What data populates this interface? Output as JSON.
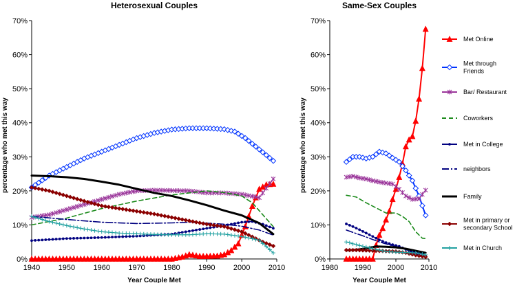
{
  "chart_data": [
    {
      "type": "line",
      "title": "Heterosexual Couples",
      "xlabel": "Year Couple Met",
      "ylabel": "percentage who met this way",
      "xlim": [
        1940,
        2010
      ],
      "ylim": [
        0,
        70
      ],
      "xticks": [
        1940,
        1950,
        1960,
        1970,
        1980,
        1990,
        2000,
        2010
      ],
      "yticks": [
        "0%",
        "10%",
        "20%",
        "30%",
        "40%",
        "50%",
        "60%",
        "70%"
      ],
      "series": [
        {
          "name": "Met Online",
          "color": "#ff0000",
          "marker": "triangle",
          "width": 2,
          "x": [
            1940,
            1950,
            1960,
            1970,
            1980,
            1983,
            1985,
            1988,
            1990,
            1993,
            1995,
            1997,
            1999,
            2001,
            2003,
            2005,
            2007,
            2009
          ],
          "y": [
            0,
            0,
            0,
            0,
            0,
            0.6,
            1.3,
            0.8,
            0.8,
            0.9,
            1.3,
            2.5,
            4.5,
            9.5,
            15.5,
            20.5,
            21.8,
            22
          ]
        },
        {
          "name": "Met through Friends",
          "color": "#0033ff",
          "marker": "diamond",
          "width": 2,
          "x": [
            1940,
            1945,
            1950,
            1955,
            1960,
            1965,
            1970,
            1975,
            1980,
            1985,
            1990,
            1995,
            1998,
            2001,
            2004,
            2007,
            2009
          ],
          "y": [
            21,
            24.5,
            27,
            29.5,
            31.5,
            33.5,
            35.5,
            37,
            38,
            38.4,
            38.4,
            38.1,
            37.4,
            35.5,
            33,
            30.5,
            28.8
          ]
        },
        {
          "name": "Bar/ Restaurant",
          "color": "#993399",
          "marker": "star",
          "width": 1.2,
          "x": [
            1940,
            1945,
            1950,
            1955,
            1960,
            1965,
            1970,
            1975,
            1980,
            1985,
            1990,
            1995,
            2000,
            2005,
            2009
          ],
          "y": [
            12.2,
            13,
            14.5,
            16,
            17.5,
            19,
            20,
            20.2,
            20.1,
            20,
            19.4,
            19.4,
            19,
            18,
            23.5
          ]
        },
        {
          "name": "Coworkers",
          "color": "#1a8a1a",
          "dash": "6,4",
          "width": 1.6,
          "x": [
            1940,
            1950,
            1960,
            1970,
            1980,
            1990,
            1995,
            2000,
            2003,
            2006,
            2009
          ],
          "y": [
            10,
            12,
            14.8,
            17,
            18.8,
            20,
            19.5,
            18.5,
            16.5,
            13,
            9.5
          ]
        },
        {
          "name": "Met in College",
          "color": "#000080",
          "marker": "dot",
          "width": 1.2,
          "x": [
            1940,
            1950,
            1960,
            1970,
            1980,
            1990,
            1995,
            2000,
            2003,
            2006,
            2009
          ],
          "y": [
            5.4,
            6,
            6.3,
            6.7,
            7.3,
            9,
            9.8,
            10.8,
            11,
            10.2,
            9
          ]
        },
        {
          "name": "neighbors",
          "color": "#000080",
          "dash": "10,3,2,3",
          "width": 1.6,
          "x": [
            1940,
            1950,
            1960,
            1970,
            1980,
            1985,
            1990,
            1995,
            2000,
            2005,
            2009
          ],
          "y": [
            12.5,
            11.6,
            10.8,
            10.4,
            10.6,
            10.8,
            10.5,
            10.2,
            9.6,
            8.5,
            7
          ]
        },
        {
          "name": "Family",
          "color": "#000000",
          "width": 3,
          "x": [
            1940,
            1945,
            1950,
            1955,
            1960,
            1965,
            1970,
            1975,
            1980,
            1985,
            1990,
            1995,
            2000,
            2005,
            2009
          ],
          "y": [
            24.5,
            24.3,
            24,
            23.5,
            22.7,
            21.8,
            20.6,
            19.4,
            18.5,
            17.2,
            15.8,
            14.2,
            12.8,
            10.5,
            7.3
          ]
        },
        {
          "name": "Met in primary or secondary School",
          "color": "#8b0000",
          "marker": "diamond-filled",
          "width": 1.6,
          "x": [
            1940,
            1945,
            1950,
            1955,
            1960,
            1965,
            1970,
            1975,
            1980,
            1985,
            1990,
            1995,
            2000,
            2003,
            2006,
            2009
          ],
          "y": [
            21,
            20,
            18.5,
            17,
            15.6,
            14.8,
            14,
            13.2,
            12.2,
            11.2,
            10.2,
            9.5,
            8,
            6.5,
            5,
            3.8
          ]
        },
        {
          "name": "Met in Church",
          "color": "#20a0a0",
          "marker": "plus",
          "width": 1.2,
          "x": [
            1940,
            1945,
            1950,
            1955,
            1960,
            1965,
            1970,
            1975,
            1980,
            1985,
            1990,
            1995,
            2000,
            2005,
            2009
          ],
          "y": [
            12.5,
            11,
            9.8,
            8.8,
            8,
            7.6,
            7.4,
            7.2,
            7.1,
            7.1,
            7.4,
            7.3,
            6.6,
            5.5,
            1.8
          ]
        }
      ]
    },
    {
      "type": "line",
      "title": "Same-Sex Couples",
      "xlabel": "Year Couple Met",
      "ylabel": "percentage who met this way",
      "xlim": [
        1980,
        2010
      ],
      "ylim": [
        0,
        70
      ],
      "xticks": [
        1980,
        1990,
        2000,
        2010
      ],
      "yticks": [
        "0%",
        "10%",
        "20%",
        "30%",
        "40%",
        "50%",
        "60%",
        "70%"
      ],
      "series": [
        {
          "name": "Met Online",
          "color": "#ff0000",
          "marker": "triangle",
          "width": 2,
          "x": [
            1985,
            1987,
            1989,
            1991,
            1993,
            1994,
            1995,
            1996,
            1997,
            1998,
            1999,
            2000,
            2001,
            2002,
            2003,
            2004,
            2005,
            2006,
            2007,
            2008,
            2009
          ],
          "y": [
            0,
            0,
            0,
            0,
            0,
            4,
            7,
            9,
            11.5,
            14,
            17.5,
            20.5,
            24,
            28,
            33,
            35,
            36,
            40.5,
            47,
            56,
            67.5
          ]
        },
        {
          "name": "Met through Friends",
          "color": "#0033ff",
          "marker": "diamond",
          "width": 2,
          "x": [
            1985,
            1987,
            1989,
            1991,
            1993,
            1995,
            1997,
            1999,
            2001,
            2003,
            2005,
            2007,
            2009
          ],
          "y": [
            28.5,
            30,
            30,
            29.5,
            30,
            31.5,
            31,
            29.7,
            28.5,
            26,
            23,
            18.5,
            12.8
          ]
        },
        {
          "name": "Bar/ Restaurant",
          "color": "#993399",
          "marker": "star",
          "width": 1.2,
          "x": [
            1985,
            1987,
            1989,
            1991,
            1993,
            1995,
            1997,
            1999,
            2001,
            2003,
            2005,
            2007,
            2009
          ],
          "y": [
            24,
            24.3,
            23.8,
            23.5,
            23,
            22.6,
            22.3,
            22,
            20.5,
            18.5,
            17.5,
            17.7,
            20.2
          ]
        },
        {
          "name": "Coworkers",
          "color": "#1a8a1a",
          "dash": "6,4",
          "width": 1.6,
          "x": [
            1985,
            1988,
            1991,
            1994,
            1997,
            2000,
            2002,
            2004,
            2006,
            2008,
            2009
          ],
          "y": [
            18.7,
            18.2,
            16.5,
            15,
            13.5,
            13.5,
            12.5,
            11,
            8,
            6.1,
            6
          ]
        },
        {
          "name": "Met in College",
          "color": "#000080",
          "marker": "dot",
          "width": 1.2,
          "x": [
            1985,
            1987,
            1989,
            1991,
            1993,
            1995,
            1997,
            1999,
            2001,
            2003,
            2005,
            2007,
            2009
          ],
          "y": [
            10.3,
            9.5,
            8.6,
            7.6,
            6.6,
            5.6,
            4.8,
            4.2,
            3.7,
            2.8,
            1.9,
            1.2,
            0.8
          ]
        },
        {
          "name": "neighbors",
          "color": "#000080",
          "dash": "10,3,2,3",
          "width": 1.6,
          "x": [
            1985,
            1990,
            1995,
            2000,
            2005,
            2009
          ],
          "y": [
            8.5,
            6.8,
            5,
            3.6,
            2.2,
            1.5
          ]
        },
        {
          "name": "Family",
          "color": "#000000",
          "width": 3,
          "x": [
            1985,
            1988,
            1991,
            1994,
            1997,
            2000,
            2003,
            2006,
            2009
          ],
          "y": [
            2.5,
            2.7,
            3.1,
            3.7,
            3.6,
            3.4,
            3,
            2.4,
            1.8
          ]
        },
        {
          "name": "Met in primary or secondary School",
          "color": "#8b0000",
          "marker": "diamond-filled",
          "width": 1.6,
          "x": [
            1985,
            1988,
            1991,
            1994,
            1997,
            2000,
            2003,
            2006,
            2009
          ],
          "y": [
            2.6,
            2.6,
            2.5,
            2.4,
            2.3,
            2.2,
            1.8,
            1.1,
            0.6
          ]
        },
        {
          "name": "Met in Church",
          "color": "#20a0a0",
          "marker": "plus",
          "width": 1.2,
          "x": [
            1985,
            1988,
            1991,
            1994,
            1997,
            2000,
            2003,
            2006,
            2009
          ],
          "y": [
            5,
            4.2,
            3.5,
            2.8,
            2.2,
            2,
            1.9,
            1.8,
            1.2
          ]
        }
      ]
    }
  ],
  "legend": {
    "placement": "right",
    "items": [
      {
        "label": "Met Online",
        "color": "#ff0000",
        "marker": "triangle"
      },
      {
        "label": "Met through Friends",
        "color": "#0033ff",
        "marker": "diamond"
      },
      {
        "label": "Bar/ Restaurant",
        "color": "#993399",
        "marker": "star"
      },
      {
        "label": "Coworkers",
        "color": "#1a8a1a",
        "dash": "6,4"
      },
      {
        "label": "Met in College",
        "color": "#000080",
        "marker": "dot"
      },
      {
        "label": "neighbors",
        "color": "#000080",
        "dash": "10,3,2,3"
      },
      {
        "label": "Family",
        "color": "#000000"
      },
      {
        "label": "Met in primary or secondary School",
        "color": "#8b0000",
        "marker": "diamond-filled"
      },
      {
        "label": "Met in Church",
        "color": "#20a0a0",
        "marker": "plus"
      }
    ]
  }
}
